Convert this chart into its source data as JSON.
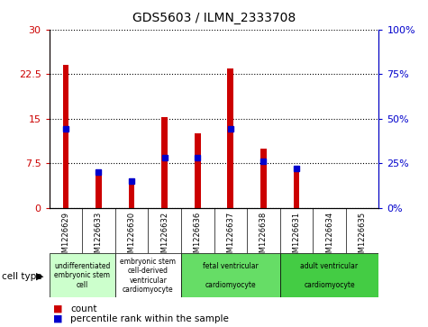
{
  "title": "GDS5603 / ILMN_2333708",
  "samples": [
    "GSM1226629",
    "GSM1226633",
    "GSM1226630",
    "GSM1226632",
    "GSM1226636",
    "GSM1226637",
    "GSM1226638",
    "GSM1226631",
    "GSM1226634",
    "GSM1226635"
  ],
  "counts": [
    24.0,
    6.5,
    5.0,
    15.2,
    12.5,
    23.5,
    10.0,
    6.5,
    0.0,
    0.0
  ],
  "percentiles": [
    44,
    20,
    15,
    28,
    28,
    44,
    26,
    22,
    0,
    0
  ],
  "ylim_left": [
    0,
    30
  ],
  "ylim_right": [
    0,
    100
  ],
  "yticks_left": [
    0,
    7.5,
    15,
    22.5,
    30
  ],
  "yticks_right": [
    0,
    25,
    50,
    75,
    100
  ],
  "ytick_labels_left": [
    "0",
    "7.5",
    "15",
    "22.5",
    "30"
  ],
  "ytick_labels_right": [
    "0%",
    "25%",
    "50%",
    "75%",
    "100%"
  ],
  "cell_type_groups": [
    {
      "label": "undifferentiated\nembryonic stem\ncell",
      "start": 0,
      "end": 2,
      "color": "#ccffcc"
    },
    {
      "label": "embryonic stem\ncell-derived\nventricular\ncardiomyocyte",
      "start": 2,
      "end": 4,
      "color": "#ffffff"
    },
    {
      "label": "fetal ventricular\n\ncardiomyocyte",
      "start": 4,
      "end": 7,
      "color": "#66dd66"
    },
    {
      "label": "adult ventricular\n\ncardiomyocyte",
      "start": 7,
      "end": 10,
      "color": "#44cc44"
    }
  ],
  "bar_color": "#cc0000",
  "percentile_color": "#0000cc",
  "count_label": "count",
  "percentile_label": "percentile rank within the sample",
  "cell_type_label": "cell type",
  "plot_bg": "#ffffff",
  "sample_bg": "#d3d3d3",
  "bar_width": 0.18
}
